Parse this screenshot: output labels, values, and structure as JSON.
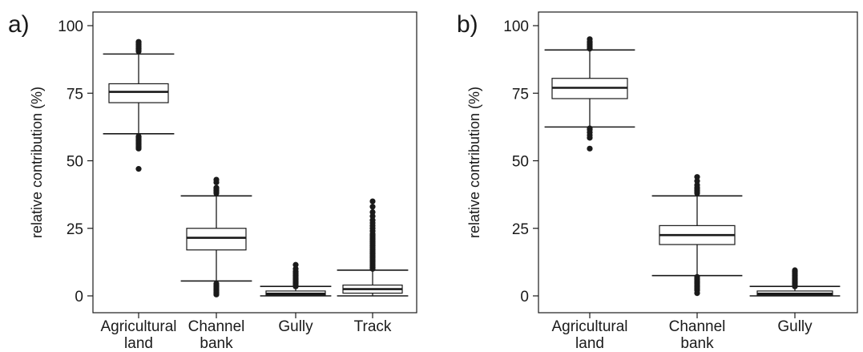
{
  "chart_data": [
    {
      "type": "box",
      "panel_label": "a)",
      "ylabel": "relative contribution (%)",
      "ylim": [
        0,
        100
      ],
      "yticks": [
        0,
        25,
        50,
        75,
        100
      ],
      "grid": false,
      "categories": [
        {
          "lines": [
            "Agricultural",
            "land"
          ]
        },
        {
          "lines": [
            "Channel",
            "bank"
          ]
        },
        {
          "lines": [
            "Gully"
          ]
        },
        {
          "lines": [
            "Track"
          ]
        }
      ],
      "boxes": [
        {
          "whisker_low": 60,
          "q1": 71.5,
          "median": 75.5,
          "q3": 78.5,
          "whisker_high": 89.5,
          "outliers": [
            47,
            54.5,
            55,
            55.5,
            56,
            56.5,
            57,
            57.5,
            58,
            58.5,
            59,
            90.5,
            91,
            91.5,
            92,
            92.5,
            93,
            93.5,
            94
          ]
        },
        {
          "whisker_low": 5.5,
          "q1": 17,
          "median": 21.5,
          "q3": 25,
          "whisker_high": 37,
          "outliers": [
            0.5,
            1,
            1.5,
            2,
            2.5,
            3,
            3.5,
            4,
            4.5,
            38,
            38.5,
            39,
            39.5,
            40,
            42,
            43
          ]
        },
        {
          "whisker_low": 0,
          "q1": 0.3,
          "median": 0.8,
          "q3": 1.8,
          "whisker_high": 3.5,
          "outliers": [
            3.5,
            4,
            4.5,
            5,
            5.5,
            6,
            6.5,
            7,
            7.5,
            8,
            8.5,
            9,
            10,
            11.5
          ]
        },
        {
          "whisker_low": 0,
          "q1": 1,
          "median": 2.5,
          "q3": 4,
          "whisker_high": 9.5,
          "outliers": [
            10,
            10.5,
            11,
            11.5,
            12,
            12.5,
            13,
            13.5,
            14,
            14.5,
            15,
            15.5,
            16,
            16.5,
            17,
            17.5,
            18,
            18.5,
            19,
            19.5,
            20,
            20.5,
            21,
            21.5,
            22,
            22.5,
            23,
            24,
            25,
            26,
            27,
            28,
            29.5,
            31,
            33,
            35
          ]
        }
      ]
    },
    {
      "type": "box",
      "panel_label": "b)",
      "ylabel": "relative contribution (%)",
      "ylim": [
        0,
        100
      ],
      "yticks": [
        0,
        25,
        50,
        75,
        100
      ],
      "grid": false,
      "categories": [
        {
          "lines": [
            "Agricultural",
            "land"
          ]
        },
        {
          "lines": [
            "Channel",
            "bank"
          ]
        },
        {
          "lines": [
            "Gully"
          ]
        }
      ],
      "boxes": [
        {
          "whisker_low": 62.5,
          "q1": 73,
          "median": 77,
          "q3": 80.5,
          "whisker_high": 91,
          "outliers": [
            54.5,
            58.5,
            59.5,
            60.5,
            61.5,
            62,
            91.5,
            92,
            92.5,
            93,
            93.5,
            94,
            95
          ]
        },
        {
          "whisker_low": 7.5,
          "q1": 19,
          "median": 22.5,
          "q3": 26,
          "whisker_high": 37,
          "outliers": [
            1,
            2,
            2.5,
            3,
            3.5,
            4,
            4.5,
            5,
            5.5,
            6,
            6.5,
            7,
            38,
            38.5,
            39,
            39.5,
            40,
            41,
            42.5,
            44
          ]
        },
        {
          "whisker_low": 0,
          "q1": 0.3,
          "median": 0.8,
          "q3": 1.8,
          "whisker_high": 3.5,
          "outliers": [
            3.5,
            4,
            4.5,
            5,
            5.5,
            6,
            6.5,
            7,
            7.5,
            8,
            8.5,
            9,
            9.5
          ]
        }
      ]
    }
  ]
}
